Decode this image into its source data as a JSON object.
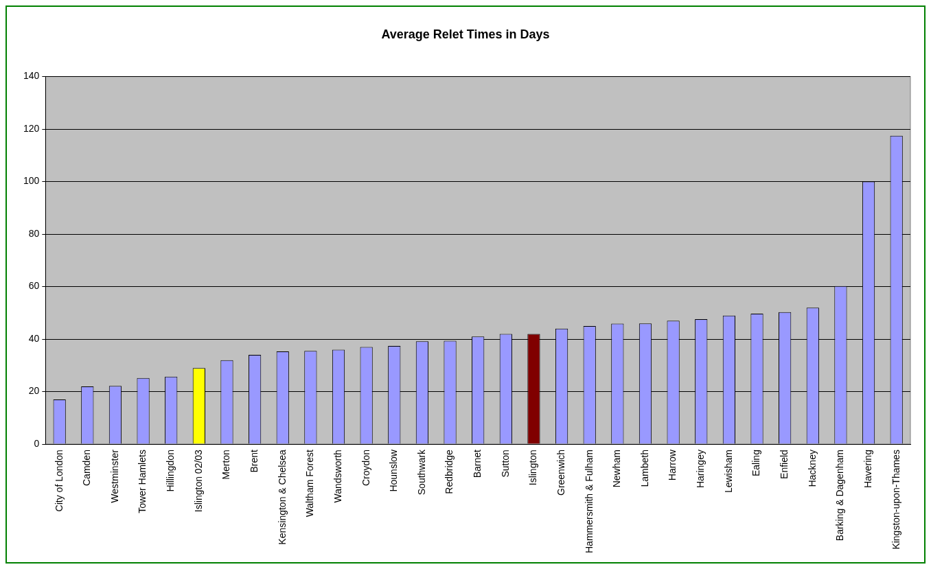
{
  "chart_data": {
    "type": "bar",
    "title": "Average Relet Times in Days",
    "categories": [
      "City of London",
      "Camden",
      "Westminster",
      "Tower Hamlets",
      "Hillingdon",
      "Islington 02/03",
      "Merton",
      "Brent",
      "Kensington & Chelsea",
      "Waltham Forest",
      "Wandsworth",
      "Croydon",
      "Hounslow",
      "Southwark",
      "Redbridge",
      "Barnet",
      "Sutton",
      "Islington",
      "Greenwich",
      "Hammersmith & Fulham",
      "Newham",
      "Lambeth",
      "Harrow",
      "Haringey",
      "Lewisham",
      "Ealing",
      "Enfield",
      "Hackney",
      "Barking & Dagenham",
      "Havering",
      "Kingston-upon-Thames"
    ],
    "values": [
      17,
      22,
      22.2,
      25.2,
      25.7,
      29,
      32,
      34,
      35.3,
      35.5,
      36,
      37,
      37.4,
      39.2,
      39.4,
      41,
      42,
      42,
      44,
      45,
      45.9,
      46,
      47,
      47.6,
      49,
      49.7,
      50.3,
      52,
      60.2,
      100,
      117.5
    ],
    "colors": [
      "#9999ff",
      "#9999ff",
      "#9999ff",
      "#9999ff",
      "#9999ff",
      "#ffff00",
      "#9999ff",
      "#9999ff",
      "#9999ff",
      "#9999ff",
      "#9999ff",
      "#9999ff",
      "#9999ff",
      "#9999ff",
      "#9999ff",
      "#9999ff",
      "#9999ff",
      "#800000",
      "#9999ff",
      "#9999ff",
      "#9999ff",
      "#9999ff",
      "#9999ff",
      "#9999ff",
      "#9999ff",
      "#9999ff",
      "#9999ff",
      "#9999ff",
      "#9999ff",
      "#9999ff",
      "#9999ff"
    ],
    "ylim": [
      0,
      140
    ],
    "yticks": [
      0,
      20,
      40,
      60,
      80,
      100,
      120,
      140
    ],
    "grid": "y",
    "legend": false
  }
}
